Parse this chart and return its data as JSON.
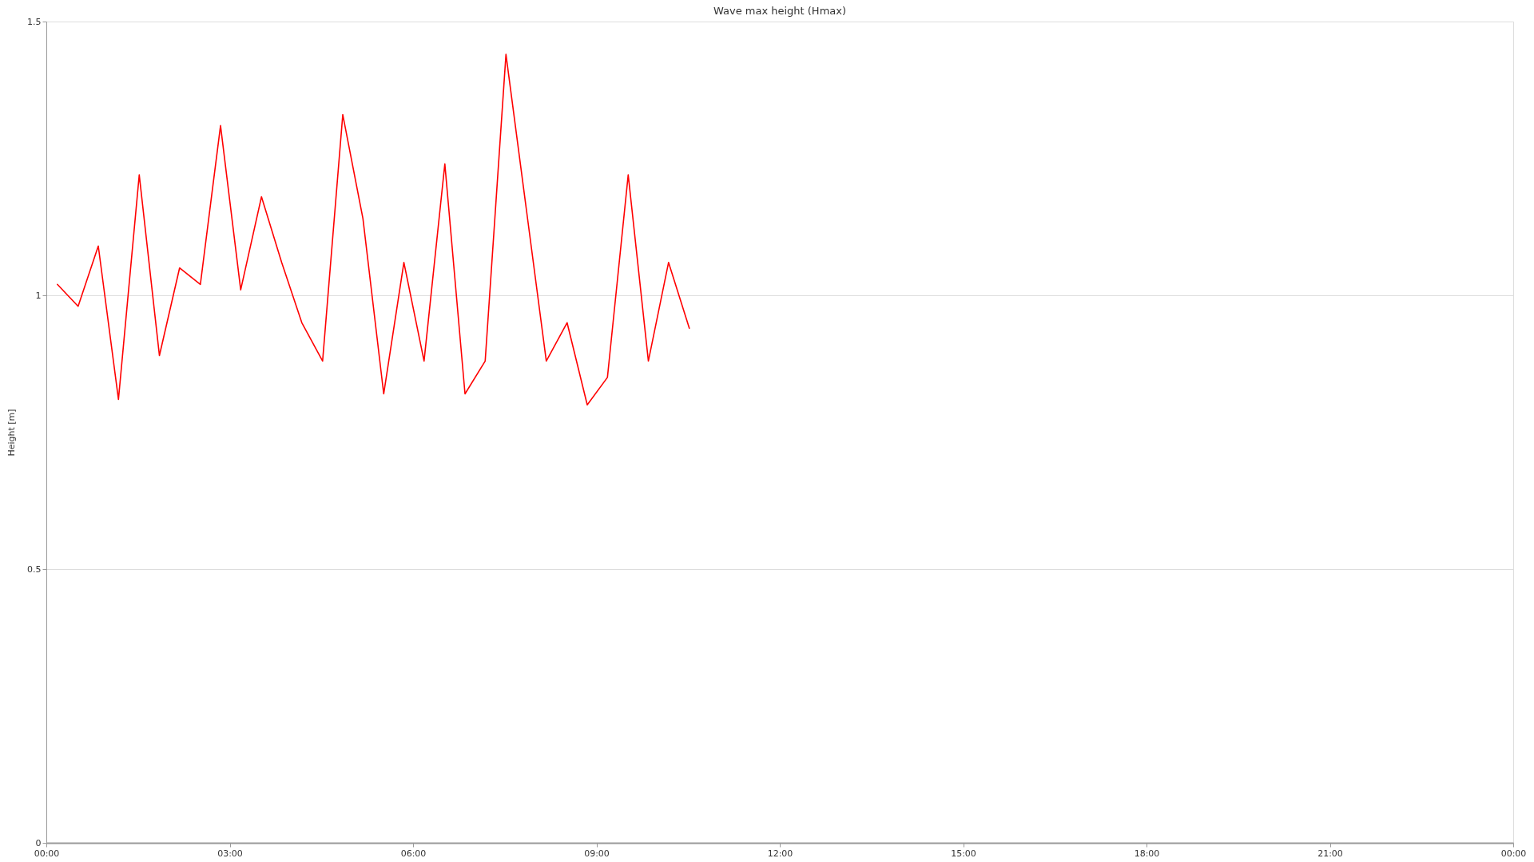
{
  "chart_data": {
    "type": "line",
    "title": "Wave max height (Hmax)",
    "ylabel": "Height [m]",
    "x": [
      0.18,
      0.52,
      0.85,
      1.18,
      1.52,
      1.85,
      2.18,
      2.52,
      2.85,
      3.18,
      3.52,
      3.85,
      4.18,
      4.52,
      4.85,
      5.18,
      5.52,
      5.85,
      6.18,
      6.52,
      6.85,
      7.18,
      7.52,
      7.85,
      8.18,
      8.52,
      8.85,
      9.18,
      9.52,
      9.85,
      10.18,
      10.52
    ],
    "series": [
      {
        "color": "#ff0000",
        "values": [
          1.02,
          0.98,
          1.09,
          0.81,
          1.22,
          0.89,
          1.05,
          1.02,
          1.31,
          1.01,
          1.18,
          1.06,
          0.95,
          0.88,
          1.33,
          1.14,
          0.82,
          1.06,
          0.88,
          1.24,
          0.82,
          0.88,
          1.44,
          1.16,
          0.88,
          0.95,
          0.8,
          0.85,
          1.22,
          0.88,
          1.06,
          0.94
        ]
      }
    ],
    "xlim": [
      0,
      24
    ],
    "xticks": [
      {
        "value": 0,
        "label": "00:00"
      },
      {
        "value": 3,
        "label": "03:00"
      },
      {
        "value": 6,
        "label": "06:00"
      },
      {
        "value": 9,
        "label": "09:00"
      },
      {
        "value": 12,
        "label": "12:00"
      },
      {
        "value": 15,
        "label": "15:00"
      },
      {
        "value": 18,
        "label": "18:00"
      },
      {
        "value": 21,
        "label": "21:00"
      },
      {
        "value": 24,
        "label": "00:00"
      }
    ],
    "ylim": [
      0,
      1.5
    ],
    "yticks": [
      0,
      0.5,
      1,
      1.5
    ],
    "grid": "y",
    "line_style": "solid"
  }
}
